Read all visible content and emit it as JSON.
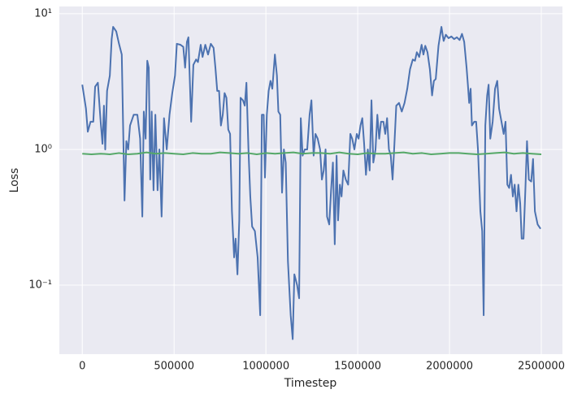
{
  "chart_data": {
    "type": "line",
    "xlabel": "Timestep",
    "ylabel": "Loss",
    "yscale": "log",
    "grid": true,
    "xlim": [
      -125000,
      2615000
    ],
    "ylim": [
      0.031,
      11.3
    ],
    "xticks": [
      0,
      500000,
      1000000,
      1500000,
      2000000,
      2500000
    ],
    "yticks": [
      {
        "value": 0.1,
        "label": "10⁻¹"
      },
      {
        "value": 1,
        "label": "10⁰"
      },
      {
        "value": 10,
        "label": "10¹"
      }
    ],
    "series": [
      {
        "color": "#4c72b0",
        "x": [
          0,
          20000,
          30000,
          45000,
          60000,
          70000,
          85000,
          100000,
          110000,
          118000,
          125000,
          135000,
          150000,
          160000,
          168000,
          185000,
          200000,
          215000,
          230000,
          240000,
          250000,
          260000,
          280000,
          300000,
          315000,
          327000,
          335000,
          345000,
          354000,
          362000,
          370000,
          378000,
          388000,
          398000,
          410000,
          420000,
          432000,
          445000,
          460000,
          475000,
          490000,
          505000,
          515000,
          535000,
          550000,
          560000,
          570000,
          578000,
          593000,
          605000,
          620000,
          630000,
          645000,
          655000,
          670000,
          685000,
          700000,
          715000,
          725000,
          735000,
          745000,
          755000,
          765000,
          775000,
          785000,
          795000,
          805000,
          815000,
          827000,
          835000,
          845000,
          855000,
          862000,
          875000,
          885000,
          894000,
          905000,
          915000,
          925000,
          940000,
          955000,
          969000,
          978000,
          988000,
          995000,
          1005000,
          1015000,
          1025000,
          1035000,
          1049000,
          1060000,
          1068000,
          1078000,
          1088000,
          1098000,
          1108000,
          1120000,
          1135000,
          1146000,
          1155000,
          1170000,
          1181000,
          1190000,
          1200000,
          1212000,
          1225000,
          1238000,
          1248000,
          1260000,
          1270000,
          1282000,
          1295000,
          1305000,
          1315000,
          1325000,
          1333000,
          1345000,
          1355000,
          1365000,
          1375000,
          1385000,
          1393000,
          1403000,
          1412000,
          1422000,
          1435000,
          1448000,
          1460000,
          1470000,
          1482000,
          1495000,
          1505000,
          1515000,
          1525000,
          1535000,
          1545000,
          1555000,
          1565000,
          1575000,
          1585000,
          1597000,
          1607000,
          1617000,
          1627000,
          1640000,
          1650000,
          1660000,
          1670000,
          1680000,
          1690000,
          1700000,
          1710000,
          1725000,
          1740000,
          1755000,
          1770000,
          1785000,
          1800000,
          1812000,
          1822000,
          1835000,
          1848000,
          1858000,
          1868000,
          1880000,
          1893000,
          1905000,
          1915000,
          1925000,
          1940000,
          1956000,
          1968000,
          1980000,
          1995000,
          2010000,
          2025000,
          2040000,
          2055000,
          2068000,
          2080000,
          2093000,
          2100000,
          2107000,
          2115000,
          2122000,
          2135000,
          2145000,
          2155000,
          2168000,
          2178000,
          2186000,
          2195000,
          2205000,
          2213000,
          2222000,
          2235000,
          2248000,
          2260000,
          2270000,
          2283000,
          2295000,
          2305000,
          2315000,
          2325000,
          2335000,
          2345000,
          2355000,
          2365000,
          2375000,
          2385000,
          2393000,
          2403000,
          2413000,
          2422000,
          2432000,
          2445000,
          2455000,
          2465000,
          2480000,
          2496000
        ],
        "values": [
          3.0,
          2.0,
          1.35,
          1.6,
          1.6,
          2.9,
          3.1,
          1.6,
          1.1,
          2.1,
          1.0,
          2.7,
          3.5,
          6.5,
          8.0,
          7.4,
          6.0,
          5.0,
          0.42,
          1.15,
          1.0,
          1.5,
          1.8,
          1.8,
          1.2,
          0.32,
          1.9,
          1.2,
          4.5,
          4.0,
          0.6,
          1.9,
          0.5,
          1.8,
          0.5,
          1.0,
          0.32,
          1.7,
          1.0,
          1.8,
          2.6,
          3.5,
          6.0,
          5.9,
          5.7,
          4.0,
          6.2,
          6.7,
          1.6,
          4.2,
          4.6,
          4.4,
          5.9,
          4.8,
          5.9,
          5.0,
          6.0,
          5.6,
          4.0,
          2.7,
          2.7,
          1.5,
          1.8,
          2.6,
          2.4,
          1.4,
          1.3,
          0.35,
          0.16,
          0.22,
          0.12,
          0.3,
          2.4,
          2.3,
          2.1,
          3.1,
          1.0,
          0.45,
          0.27,
          0.25,
          0.16,
          0.06,
          1.8,
          1.8,
          0.62,
          1.8,
          2.7,
          3.2,
          2.8,
          5.0,
          3.5,
          1.9,
          1.8,
          0.48,
          1.0,
          0.8,
          0.15,
          0.06,
          0.04,
          0.12,
          0.1,
          0.08,
          1.7,
          0.9,
          1.0,
          1.0,
          1.8,
          2.3,
          0.9,
          1.3,
          1.2,
          1.0,
          0.6,
          0.7,
          1.0,
          0.32,
          0.28,
          0.5,
          0.8,
          0.2,
          0.9,
          0.3,
          0.55,
          0.45,
          0.7,
          0.6,
          0.55,
          1.3,
          1.2,
          1.0,
          1.3,
          1.2,
          1.5,
          1.7,
          1.1,
          0.65,
          1.0,
          0.7,
          2.3,
          0.8,
          1.0,
          1.8,
          1.2,
          1.6,
          1.6,
          1.3,
          1.7,
          1.0,
          0.9,
          0.6,
          1.1,
          2.1,
          2.2,
          1.9,
          2.2,
          2.8,
          3.9,
          4.6,
          4.5,
          5.2,
          4.8,
          5.9,
          5.0,
          5.8,
          5.2,
          3.9,
          2.5,
          3.2,
          3.3,
          5.8,
          8.0,
          6.3,
          7.0,
          6.6,
          6.8,
          6.5,
          6.7,
          6.4,
          7.1,
          6.2,
          4.0,
          3.0,
          2.2,
          2.8,
          1.5,
          1.6,
          1.6,
          1.0,
          0.35,
          0.25,
          0.06,
          1.5,
          2.5,
          3.0,
          1.2,
          1.6,
          2.8,
          3.2,
          2.0,
          1.6,
          1.3,
          1.6,
          0.55,
          0.52,
          0.65,
          0.45,
          0.55,
          0.35,
          0.55,
          0.4,
          0.22,
          0.22,
          0.5,
          1.15,
          0.6,
          0.58,
          0.85,
          0.35,
          0.28,
          0.26
        ]
      },
      {
        "color": "#55a868",
        "x": [
          0,
          50000,
          100000,
          150000,
          200000,
          250000,
          300000,
          350000,
          400000,
          450000,
          500000,
          550000,
          600000,
          650000,
          700000,
          750000,
          800000,
          850000,
          900000,
          950000,
          1000000,
          1050000,
          1100000,
          1150000,
          1200000,
          1250000,
          1300000,
          1350000,
          1400000,
          1450000,
          1500000,
          1550000,
          1600000,
          1650000,
          1700000,
          1750000,
          1800000,
          1850000,
          1900000,
          1950000,
          2000000,
          2050000,
          2100000,
          2150000,
          2200000,
          2250000,
          2300000,
          2350000,
          2400000,
          2450000,
          2500000
        ],
        "values": [
          0.93,
          0.92,
          0.93,
          0.92,
          0.94,
          0.92,
          0.93,
          0.95,
          0.93,
          0.94,
          0.93,
          0.92,
          0.94,
          0.93,
          0.93,
          0.95,
          0.94,
          0.93,
          0.94,
          0.92,
          0.94,
          0.93,
          0.94,
          0.95,
          0.93,
          0.94,
          0.94,
          0.93,
          0.95,
          0.93,
          0.92,
          0.94,
          0.93,
          0.93,
          0.94,
          0.95,
          0.93,
          0.94,
          0.92,
          0.93,
          0.94,
          0.94,
          0.93,
          0.92,
          0.93,
          0.94,
          0.95,
          0.93,
          0.94,
          0.93,
          0.92
        ]
      }
    ]
  }
}
